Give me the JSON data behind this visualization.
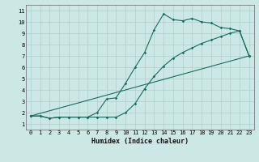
{
  "xlabel": "Humidex (Indice chaleur)",
  "ylabel": "",
  "bg_color": "#cce8e4",
  "grid_color": "#aad0cc",
  "line_color": "#1a6b5e",
  "xlim": [
    -0.5,
    23.5
  ],
  "ylim": [
    0.5,
    11.5
  ],
  "xticks": [
    0,
    1,
    2,
    3,
    4,
    5,
    6,
    7,
    8,
    9,
    10,
    11,
    12,
    13,
    14,
    15,
    16,
    17,
    18,
    19,
    20,
    21,
    22,
    23
  ],
  "yticks": [
    1,
    2,
    3,
    4,
    5,
    6,
    7,
    8,
    9,
    10,
    11
  ],
  "line1_x": [
    0,
    1,
    2,
    3,
    4,
    5,
    6,
    7,
    8,
    9,
    10,
    11,
    12,
    13,
    14,
    15,
    16,
    17,
    18,
    19,
    20,
    21,
    22,
    23
  ],
  "line1_y": [
    1.7,
    1.7,
    1.5,
    1.6,
    1.6,
    1.6,
    1.6,
    2.0,
    3.2,
    3.3,
    4.6,
    6.0,
    7.3,
    9.3,
    10.7,
    10.2,
    10.1,
    10.3,
    10.0,
    9.9,
    9.5,
    9.4,
    9.2,
    7.0
  ],
  "line2_x": [
    0,
    1,
    2,
    3,
    4,
    5,
    6,
    7,
    8,
    9,
    10,
    11,
    12,
    13,
    14,
    15,
    16,
    17,
    18,
    19,
    20,
    21,
    22,
    23
  ],
  "line2_y": [
    1.7,
    1.7,
    1.5,
    1.6,
    1.6,
    1.6,
    1.6,
    1.6,
    1.6,
    1.6,
    2.0,
    2.8,
    4.1,
    5.2,
    6.1,
    6.8,
    7.3,
    7.7,
    8.1,
    8.4,
    8.7,
    9.0,
    9.2,
    7.0
  ],
  "line3_x": [
    0,
    23
  ],
  "line3_y": [
    1.7,
    7.0
  ],
  "marker_size": 1.8,
  "line_width": 0.8,
  "xlabel_fontsize": 6.0,
  "tick_fontsize": 5.0
}
